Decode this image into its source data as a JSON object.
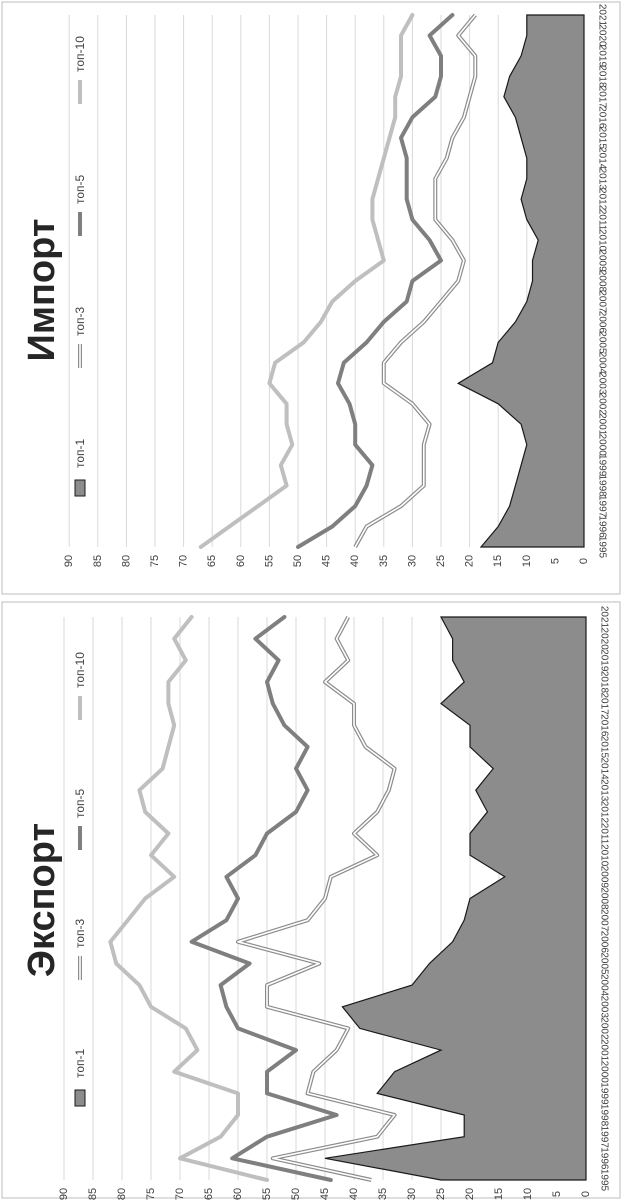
{
  "chart_data": [
    {
      "type": "area",
      "title": "Экспорт",
      "xlabel": "",
      "ylabel": "",
      "ylim": [
        0,
        90
      ],
      "yticks": [
        0,
        5,
        10,
        15,
        20,
        25,
        30,
        35,
        40,
        45,
        50,
        55,
        60,
        65,
        70,
        75,
        80,
        85,
        90
      ],
      "x": [
        1995,
        1996,
        1997,
        1998,
        1999,
        2000,
        2001,
        2002,
        2003,
        2004,
        2005,
        2006,
        2007,
        2008,
        2009,
        2010,
        2011,
        2012,
        2013,
        2014,
        2015,
        2016,
        2017,
        2018,
        2019,
        2020,
        2021
      ],
      "grid": true,
      "legend": "top",
      "series": [
        {
          "name": "топ-1",
          "style": "area",
          "color": "#8c8c8c",
          "values": [
            25,
            45,
            21,
            21,
            36,
            33,
            25,
            39,
            42,
            30,
            27,
            23,
            21,
            20,
            14,
            20,
            20,
            17,
            19,
            16,
            20,
            20,
            25,
            21,
            23,
            23,
            25
          ]
        },
        {
          "name": "топ-3",
          "style": "double",
          "color": "#8c8c8c",
          "values": [
            37,
            54,
            36,
            33,
            48,
            47,
            43,
            41,
            55,
            55,
            46,
            60,
            48,
            45,
            44,
            36,
            40,
            36,
            34,
            33,
            38,
            40,
            40,
            45,
            41,
            43,
            41
          ]
        },
        {
          "name": "топ-5",
          "style": "line",
          "color": "#7f7f7f",
          "values": [
            44,
            61,
            55,
            43,
            55,
            55,
            50,
            60,
            62,
            63,
            58,
            68,
            62,
            60,
            62,
            57,
            55,
            50,
            48,
            50,
            48,
            52,
            54,
            55,
            53,
            57,
            52
          ]
        },
        {
          "name": "топ-10",
          "style": "line",
          "color": "#bfbfbf",
          "values": [
            55,
            70,
            63,
            60,
            60,
            71,
            67,
            69,
            75,
            77,
            81,
            82,
            79,
            76,
            71,
            75,
            72,
            76,
            77,
            73,
            72,
            71,
            72,
            72,
            69,
            71,
            68
          ]
        }
      ]
    },
    {
      "type": "area",
      "title": "Импорт",
      "xlabel": "",
      "ylabel": "",
      "ylim": [
        0,
        90
      ],
      "yticks": [
        0,
        5,
        10,
        15,
        20,
        25,
        30,
        35,
        40,
        45,
        50,
        55,
        60,
        65,
        70,
        75,
        80,
        85,
        90
      ],
      "x": [
        1995,
        1996,
        1997,
        1998,
        1999,
        2000,
        2001,
        2002,
        2003,
        2004,
        2005,
        2006,
        2007,
        2008,
        2009,
        2010,
        2011,
        2012,
        2013,
        2014,
        2015,
        2016,
        2017,
        2018,
        2019,
        2020,
        2021
      ],
      "grid": true,
      "legend": "top",
      "series": [
        {
          "name": "топ-1",
          "style": "area",
          "color": "#8c8c8c",
          "values": [
            18,
            15,
            13,
            12,
            11,
            10,
            11,
            15,
            22,
            16,
            15,
            12,
            10,
            9,
            9,
            8,
            10,
            11,
            10,
            10,
            11,
            12,
            14,
            13,
            11,
            10,
            10
          ]
        },
        {
          "name": "топ-3",
          "style": "double",
          "color": "#8c8c8c",
          "values": [
            40,
            38,
            32,
            28,
            28,
            28,
            27,
            30,
            35,
            35,
            32,
            28,
            25,
            22,
            21,
            23,
            26,
            26,
            26,
            24,
            23,
            21,
            20,
            19,
            19,
            22,
            19
          ]
        },
        {
          "name": "топ-5",
          "style": "line",
          "color": "#7f7f7f",
          "values": [
            50,
            44,
            40,
            38,
            37,
            40,
            40,
            41,
            43,
            42,
            38,
            35,
            31,
            30,
            25,
            27,
            30,
            31,
            31,
            31,
            32,
            30,
            26,
            25,
            25,
            27,
            23
          ]
        },
        {
          "name": "топ-10",
          "style": "line",
          "color": "#bfbfbf",
          "values": [
            67,
            62,
            57,
            52,
            53,
            51,
            52,
            52,
            55,
            54,
            49,
            46,
            44,
            40,
            35,
            36,
            37,
            37,
            36,
            35,
            34,
            33,
            33,
            32,
            32,
            32,
            30
          ]
        }
      ]
    }
  ]
}
